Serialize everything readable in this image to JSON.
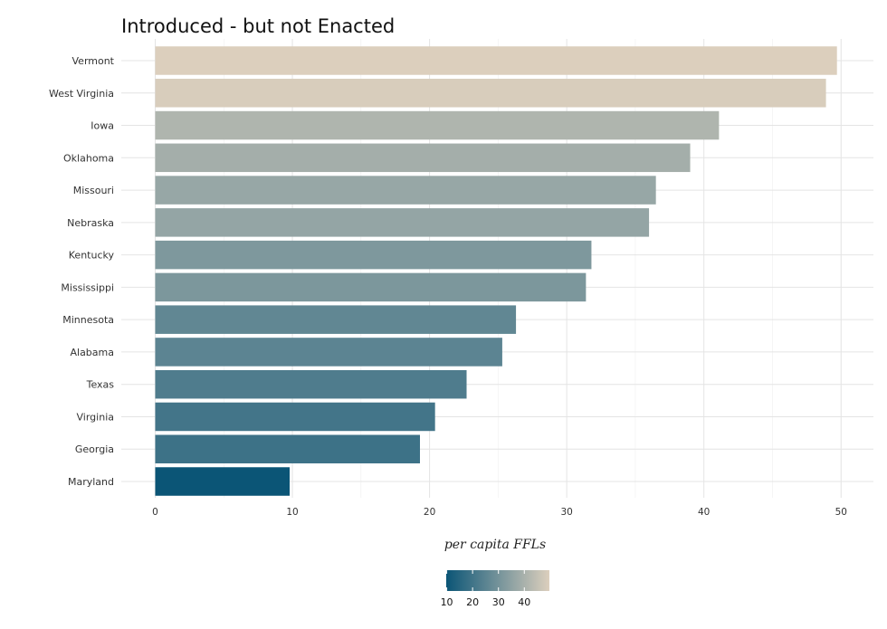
{
  "chart_data": {
    "type": "bar",
    "orientation": "horizontal",
    "title": "Introduced - but not Enacted",
    "xlabel": "per capita FFLs",
    "ylabel": "",
    "categories": [
      "Vermont",
      "West Virginia",
      "Iowa",
      "Oklahoma",
      "Missouri",
      "Nebraska",
      "Kentucky",
      "Mississippi",
      "Minnesota",
      "Alabama",
      "Texas",
      "Virginia",
      "Georgia",
      "Maryland"
    ],
    "values": [
      49.7,
      48.9,
      41.1,
      39.0,
      36.5,
      36.0,
      31.8,
      31.4,
      26.3,
      25.3,
      22.7,
      20.4,
      19.3,
      9.8
    ],
    "xlim": [
      -2.5,
      52.5
    ],
    "xticks": [
      "0",
      "10",
      "20",
      "30",
      "40",
      "50"
    ],
    "grid": true,
    "fill_scale": {
      "low_color": "#0b5576",
      "high_color": "#dccfbd",
      "range": [
        9.8,
        49.7
      ],
      "legend_ticks": [
        "10",
        "20",
        "30",
        "40"
      ],
      "legend_position": "bottom"
    }
  }
}
